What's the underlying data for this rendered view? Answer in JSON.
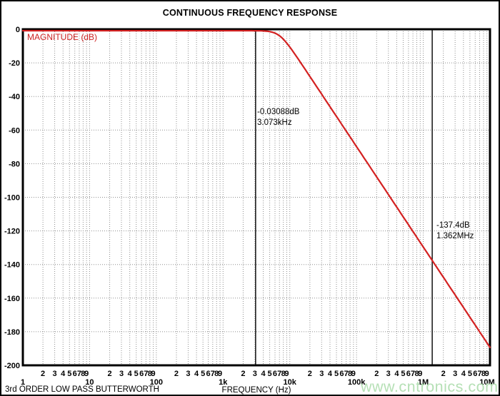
{
  "chart": {
    "title": "CONTINUOUS FREQUENCY RESPONSE",
    "ylabel": "MAGNITUDE (dB)",
    "xlabel": "FREQUENCY (Hz)",
    "caption": "3rd ORDER LOW PASS BUTTERWORTH",
    "watermark": "www.cntronics.com",
    "colors": {
      "curve": "#d32121",
      "grid": "#8f8f8f",
      "cursor": "#111111",
      "axis": "#000000",
      "ylabel_text": "#cc2222",
      "watermark": "#b2dfb2"
    },
    "chart_data": {
      "type": "line",
      "title": "CONTINUOUS FREQUENCY RESPONSE",
      "xlabel": "FREQUENCY (Hz)",
      "ylabel": "MAGNITUDE (dB)",
      "x_axis": {
        "scale": "log",
        "min_hz": 1,
        "max_hz": 10000000,
        "decade_labels": [
          "1",
          "10",
          "100",
          "1k",
          "10k",
          "100k",
          "1M",
          "10M"
        ],
        "minor_digits": [
          2,
          3,
          4,
          5,
          6,
          7,
          8,
          9
        ]
      },
      "y_axis": {
        "min_db": -200,
        "max_db": 0,
        "tick_step_db": 20,
        "tick_labels": [
          "0",
          "-20",
          "-40",
          "-60",
          "-80",
          "-100",
          "-120",
          "-140",
          "-160",
          "-180",
          "-200"
        ]
      },
      "grid": "dotted",
      "legend": "none",
      "curve": {
        "name": "magnitude",
        "model": "butterworth_lowpass",
        "order": 3,
        "cutoff_hz": 7000,
        "rolloff_db_per_decade": -60,
        "sample_points_hz_db": [
          [
            1,
            0
          ],
          [
            100,
            0
          ],
          [
            1000,
            0
          ],
          [
            3073,
            -0.03088
          ],
          [
            7000,
            -3.01
          ],
          [
            10000,
            -9.78
          ],
          [
            31623,
            -39.3
          ],
          [
            100000,
            -69.3
          ],
          [
            1000000,
            -129.3
          ],
          [
            1362000,
            -137.4
          ],
          [
            10000000,
            -189.3
          ]
        ]
      },
      "cursors": [
        {
          "freq_hz": 3073,
          "line1": "-0.03088dB",
          "line2": "3.073kHz"
        },
        {
          "freq_hz": 1362000,
          "line1": "-137.4dB",
          "line2": "1.362MHz"
        }
      ]
    }
  }
}
